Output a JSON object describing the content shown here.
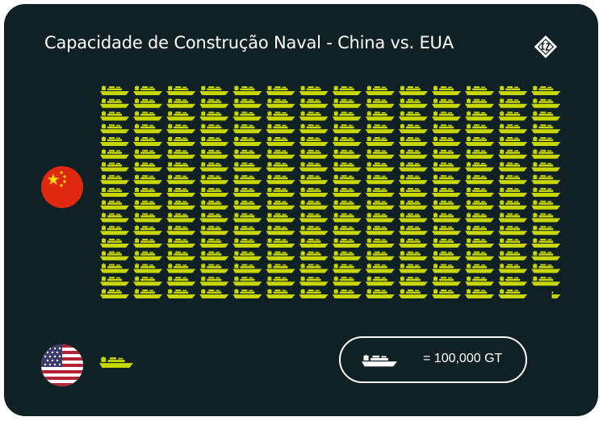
{
  "title": "Capacidade de Construção Naval - China vs. EUA",
  "legend": {
    "unit_text": "= 100,000 GT",
    "icon": "ship-icon"
  },
  "colors": {
    "background": "#0f2124",
    "ship": "#c8d700",
    "text": "#ffffff",
    "legend_ship": "#ffffff"
  },
  "chart_data": {
    "type": "pictograph",
    "unit_value": 100000,
    "unit_label": "GT",
    "series": [
      {
        "country_icon": "china-flag-icon",
        "icons": 237.3
      },
      {
        "country_icon": "usa-flag-icon",
        "icons": 1
      }
    ]
  }
}
